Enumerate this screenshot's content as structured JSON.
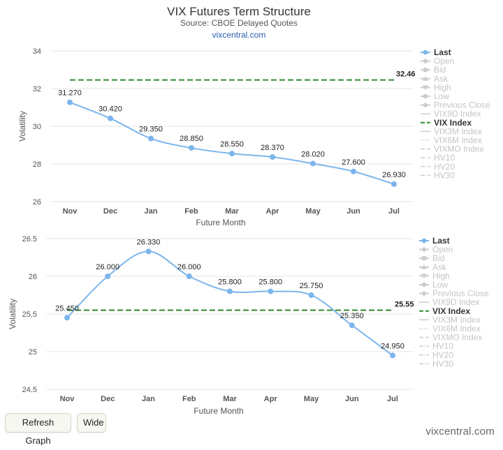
{
  "header": {
    "title": "VIX Futures Term Structure",
    "subtitle": "Source: CBOE Delayed Quotes",
    "link": "vixcentral.com"
  },
  "buttons": {
    "refresh": "Refresh Graph",
    "wide": "Wide"
  },
  "footer": {
    "credit": "vixcentral.com"
  },
  "colors": {
    "last_series": "#7cb5ec",
    "vix_index": "#2e8b2e",
    "grid": "#e6e6e6",
    "legend_inactive": "#cccccc"
  },
  "chart_data": [
    {
      "type": "line",
      "xlabel": "Future Month",
      "ylabel": "Volatility",
      "categories": [
        "Nov",
        "Dec",
        "Jan",
        "Feb",
        "Mar",
        "Apr",
        "May",
        "Jun",
        "Jul"
      ],
      "ylim": [
        26,
        34
      ],
      "yticks": [
        26,
        28,
        30,
        32,
        34
      ],
      "ytick_labels": [
        "26",
        "28",
        "30",
        "32",
        "34"
      ],
      "grid": true,
      "legend_position": "right",
      "series": [
        {
          "name": "Last",
          "values": [
            31.27,
            30.42,
            29.35,
            28.85,
            28.55,
            28.37,
            28.02,
            27.6,
            26.93
          ],
          "labels": [
            "31.270",
            "30.420",
            "29.350",
            "28.850",
            "28.550",
            "28.370",
            "28.020",
            "27.600",
            "26.930"
          ]
        }
      ],
      "vix_index": {
        "value": 32.46,
        "label": "32.46"
      },
      "legend": [
        {
          "name": "Last",
          "active": true,
          "symbol": "circle"
        },
        {
          "name": "Open",
          "active": false,
          "symbol": "diamond"
        },
        {
          "name": "Bid",
          "active": false,
          "symbol": "square"
        },
        {
          "name": "Ask",
          "active": false,
          "symbol": "triangle"
        },
        {
          "name": "High",
          "active": false,
          "symbol": "triangle-down"
        },
        {
          "name": "Low",
          "active": false,
          "symbol": "circle"
        },
        {
          "name": "Previous Close",
          "active": false,
          "symbol": "diamond"
        },
        {
          "name": "VIX9D Index",
          "active": false,
          "symbol": "line"
        },
        {
          "name": "VIX Index",
          "active": true,
          "symbol": "dash"
        },
        {
          "name": "VIX3M Index",
          "active": false,
          "symbol": "line"
        },
        {
          "name": "VIX6M Index",
          "active": false,
          "symbol": "dot"
        },
        {
          "name": "VIXMO Index",
          "active": false,
          "symbol": "dash"
        },
        {
          "name": "HV10",
          "active": false,
          "symbol": "dashdot"
        },
        {
          "name": "HV20",
          "active": false,
          "symbol": "dashdot"
        },
        {
          "name": "HV30",
          "active": false,
          "symbol": "dashdot"
        }
      ]
    },
    {
      "type": "line",
      "xlabel": "Future Month",
      "ylabel": "Volatility",
      "categories": [
        "Nov",
        "Dec",
        "Jan",
        "Feb",
        "Mar",
        "Apr",
        "May",
        "Jun",
        "Jul"
      ],
      "ylim": [
        24.5,
        26.5
      ],
      "yticks": [
        24.5,
        25,
        25.5,
        26,
        26.5
      ],
      "ytick_labels": [
        "24.5",
        "25",
        "25.5",
        "26",
        "26.5"
      ],
      "grid": true,
      "legend_position": "right",
      "series": [
        {
          "name": "Last",
          "values": [
            25.45,
            26.0,
            26.33,
            26.0,
            25.8,
            25.8,
            25.75,
            25.35,
            24.95
          ],
          "labels": [
            "25.450",
            "26.000",
            "26.330",
            "26.000",
            "25.800",
            "25.800",
            "25.750",
            "25.350",
            "24.950"
          ]
        }
      ],
      "vix_index": {
        "value": 25.55,
        "label": "25.55"
      },
      "legend": [
        {
          "name": "Last",
          "active": true,
          "symbol": "circle"
        },
        {
          "name": "Open",
          "active": false,
          "symbol": "diamond"
        },
        {
          "name": "Bid",
          "active": false,
          "symbol": "square"
        },
        {
          "name": "Ask",
          "active": false,
          "symbol": "triangle"
        },
        {
          "name": "High",
          "active": false,
          "symbol": "triangle-down"
        },
        {
          "name": "Low",
          "active": false,
          "symbol": "circle"
        },
        {
          "name": "Previous Close",
          "active": false,
          "symbol": "diamond"
        },
        {
          "name": "VIX9D Index",
          "active": false,
          "symbol": "line"
        },
        {
          "name": "VIX Index",
          "active": true,
          "symbol": "dash"
        },
        {
          "name": "VIX3M Index",
          "active": false,
          "symbol": "line"
        },
        {
          "name": "VIX6M Index",
          "active": false,
          "symbol": "dot"
        },
        {
          "name": "VIXMO Index",
          "active": false,
          "symbol": "dash"
        },
        {
          "name": "HV10",
          "active": false,
          "symbol": "dashdot"
        },
        {
          "name": "HV20",
          "active": false,
          "symbol": "dashdot"
        },
        {
          "name": "HV30",
          "active": false,
          "symbol": "dashdot"
        }
      ]
    }
  ]
}
